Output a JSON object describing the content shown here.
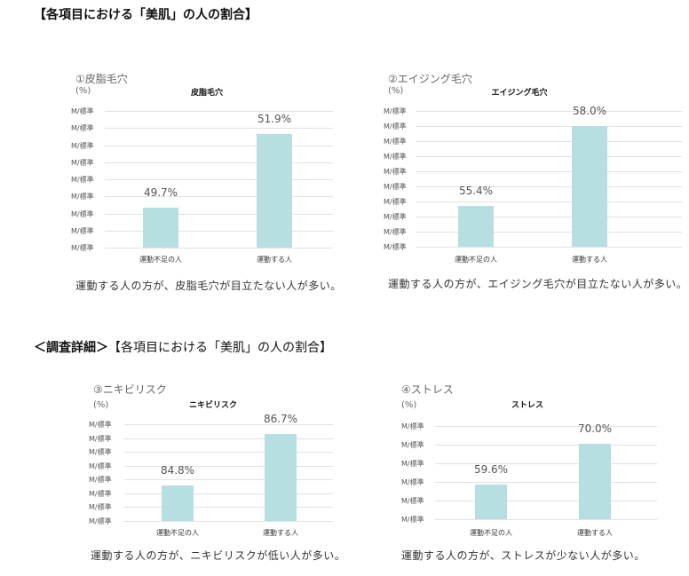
{
  "heading": "【各項目における「美肌」の人の割合】",
  "section2": {
    "prefix": "＜調査詳細＞",
    "title": "【各項目における「美肌」の人の割合】"
  },
  "colors": {
    "bar": "#b7dfe2",
    "grid": "#e2e2e2"
  },
  "chart_data": [
    {
      "type": "bar",
      "label": "①皮脂毛穴",
      "unit": "(%)",
      "title": "皮脂毛穴",
      "categories": [
        "運動不足の人",
        "運動する人"
      ],
      "values": [
        49.7,
        51.9
      ],
      "value_labels": [
        "49.7%",
        "51.9%"
      ],
      "ticks": [
        "M/標準",
        "M/標準",
        "M/標準",
        "M/標準",
        "M/標準",
        "M/標準",
        "M/標準",
        "M/標準",
        "M/標準"
      ],
      "ylim": [
        48.5,
        52.6
      ],
      "grid": true,
      "caption": "運動する人の方が、皮脂毛穴が目立たない人が多い。"
    },
    {
      "type": "bar",
      "label": "②エイジング毛穴",
      "unit": "(%)",
      "title": "エイジング毛穴",
      "categories": [
        "運動不足の人",
        "運動する人"
      ],
      "values": [
        55.4,
        58.0
      ],
      "value_labels": [
        "55.4%",
        "58.0%"
      ],
      "ticks": [
        "M/標準",
        "M/標準",
        "M/標準",
        "M/標準",
        "M/標準",
        "M/標準",
        "M/標準",
        "M/標準",
        "M/標準",
        "M/標準"
      ],
      "ylim": [
        54.05,
        58.5
      ],
      "grid": true,
      "caption": "運動する人の方が、エイジング毛穴が目立たない人が多い。"
    },
    {
      "type": "bar",
      "label": "③ニキビリスク",
      "unit": "(%)",
      "title": "ニキビリスク",
      "categories": [
        "運動不足の人",
        "運動する人"
      ],
      "values": [
        84.8,
        86.7
      ],
      "value_labels": [
        "84.8%",
        "86.7%"
      ],
      "ticks": [
        "M/標準",
        "M/標準",
        "M/標準",
        "M/標準",
        "M/標準",
        "M/標準",
        "M/標準",
        "M/標準"
      ],
      "ylim": [
        83.5,
        87.06
      ],
      "grid": true,
      "caption": "運動する人の方が、ニキビリスクが低い人が多い。"
    },
    {
      "type": "bar",
      "label": "④ストレス",
      "unit": "(%)",
      "title": "ストレス",
      "categories": [
        "運動不足の人",
        "運動する人"
      ],
      "values": [
        59.6,
        70.0
      ],
      "value_labels": [
        "59.6%",
        "70.0%"
      ],
      "ticks": [
        "M/標準",
        "M/標準",
        "M/標準",
        "M/標準",
        "M/標準",
        "M/標準"
      ],
      "ylim": [
        50.8,
        74.5
      ],
      "grid": true,
      "caption": "運動する人の方が、ストレスが少ない人が多い。"
    }
  ]
}
